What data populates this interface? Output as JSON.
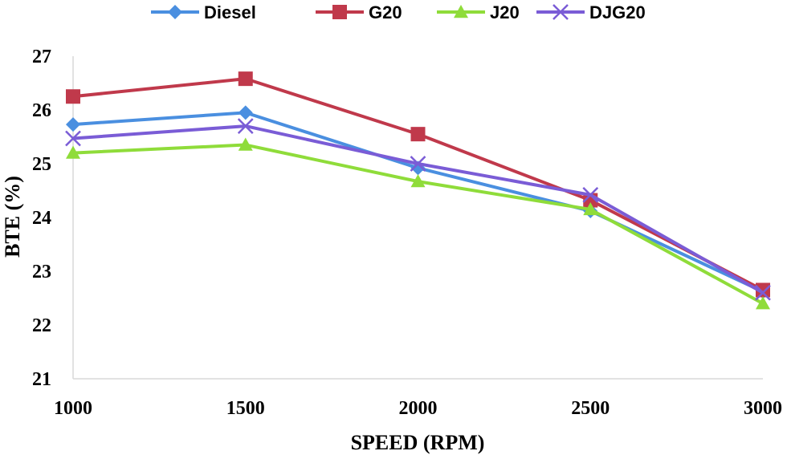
{
  "chart_data": {
    "type": "line",
    "title": "",
    "xlabel": "SPEED (RPM)",
    "ylabel": "BTE (%)",
    "categories": [
      "1000",
      "1500",
      "2000",
      "2500",
      "3000"
    ],
    "x": [
      1000,
      1500,
      2000,
      2500,
      3000
    ],
    "ylim": [
      21,
      27
    ],
    "yticks": [
      "21",
      "22",
      "23",
      "24",
      "25",
      "26",
      "27"
    ],
    "grid": false,
    "legend": "top",
    "series": [
      {
        "name": "Diesel",
        "color": "#4a8fe0",
        "marker": "diamond",
        "values": [
          25.73,
          25.95,
          24.92,
          24.12,
          22.62
        ]
      },
      {
        "name": "G20",
        "color": "#c0394b",
        "marker": "square",
        "values": [
          26.25,
          26.58,
          25.55,
          24.32,
          22.65
        ]
      },
      {
        "name": "J20",
        "color": "#8fdc3a",
        "marker": "triangle",
        "values": [
          25.2,
          25.35,
          24.67,
          24.15,
          22.4
        ]
      },
      {
        "name": "DJG20",
        "color": "#7a5cd6",
        "marker": "x",
        "values": [
          25.47,
          25.7,
          25.0,
          24.42,
          22.6
        ]
      }
    ]
  }
}
